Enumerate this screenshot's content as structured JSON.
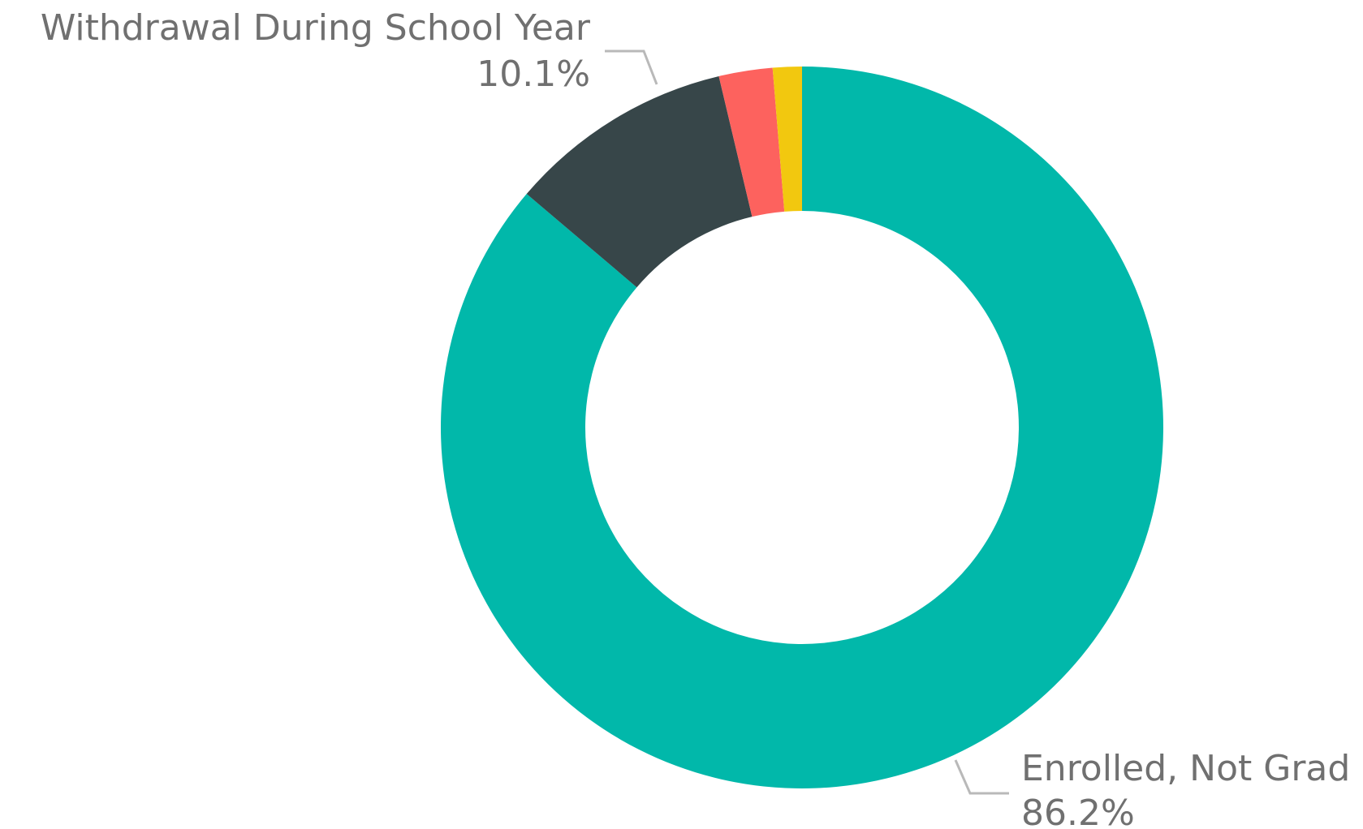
{
  "chart_data": {
    "type": "pie",
    "donut": true,
    "slices": [
      {
        "label": "Enrolled, Not Grad",
        "value": 86.2,
        "value_label": "86.2%",
        "color": "#01B8AA",
        "labeled": true
      },
      {
        "label": "Withdrawal During School Year",
        "value": 10.1,
        "value_label": "10.1%",
        "color": "#374649",
        "labeled": true
      },
      {
        "label": "",
        "value": 2.4,
        "value_label": "",
        "color": "#FD625E",
        "labeled": false
      },
      {
        "label": "",
        "value": 1.3,
        "value_label": "",
        "color": "#F2C80F",
        "labeled": false
      }
    ]
  }
}
